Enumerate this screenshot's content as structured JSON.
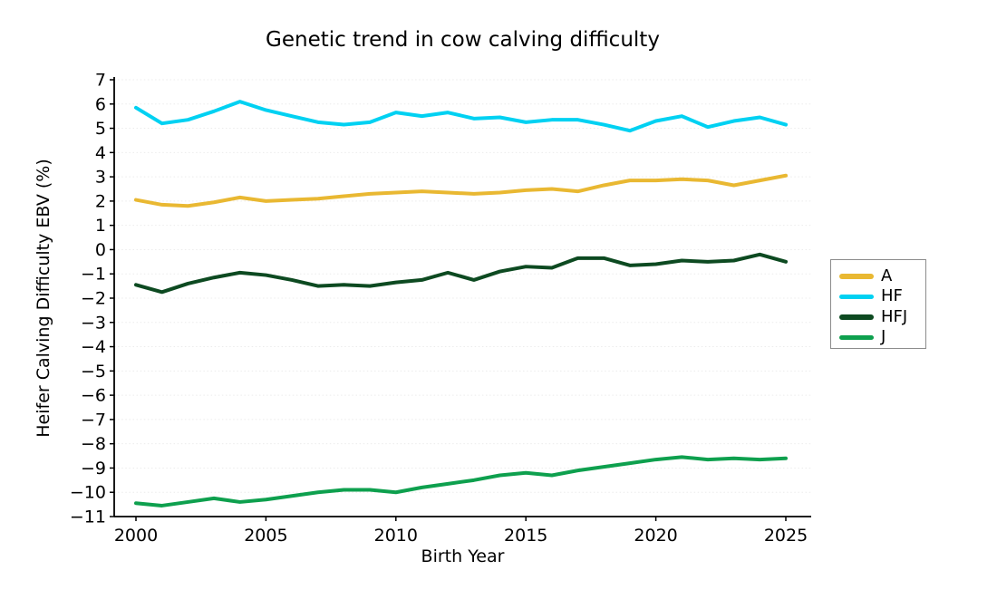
{
  "chart_data": {
    "type": "line",
    "title": "Genetic trend in cow calving difficulty",
    "xlabel": "Birth Year",
    "ylabel": "Heifer Calving Difficulty EBV (%)",
    "x": [
      2000,
      2001,
      2002,
      2003,
      2004,
      2005,
      2006,
      2007,
      2008,
      2009,
      2010,
      2011,
      2012,
      2013,
      2014,
      2015,
      2016,
      2017,
      2018,
      2019,
      2020,
      2021,
      2022,
      2023,
      2024,
      2025
    ],
    "xticks": [
      2000,
      2005,
      2010,
      2015,
      2020,
      2025
    ],
    "ylim": [
      -11,
      7
    ],
    "ytick_step": 1,
    "grid": "horizontal-dashed-light",
    "legend_position": "right-outside",
    "series": [
      {
        "name": "A",
        "color": "#E9B832",
        "values": [
          2.05,
          1.85,
          1.8,
          1.95,
          2.15,
          2.0,
          2.05,
          2.1,
          2.2,
          2.3,
          2.35,
          2.4,
          2.35,
          2.3,
          2.35,
          2.45,
          2.5,
          2.4,
          2.65,
          2.85,
          2.85,
          2.9,
          2.85,
          2.65,
          2.85,
          3.05
        ]
      },
      {
        "name": "HF",
        "color": "#00D1F2",
        "values": [
          5.85,
          5.2,
          5.35,
          5.7,
          6.1,
          5.75,
          5.5,
          5.25,
          5.15,
          5.25,
          5.65,
          5.5,
          5.65,
          5.4,
          5.45,
          5.25,
          5.35,
          5.35,
          5.15,
          4.9,
          5.3,
          5.5,
          5.05,
          5.3,
          5.45,
          5.15
        ]
      },
      {
        "name": "HFJ",
        "color": "#0D4A21",
        "values": [
          -1.45,
          -1.75,
          -1.4,
          -1.15,
          -0.95,
          -1.05,
          -1.25,
          -1.5,
          -1.45,
          -1.5,
          -1.35,
          -1.25,
          -0.95,
          -1.25,
          -0.9,
          -0.7,
          -0.75,
          -0.35,
          -0.35,
          -0.65,
          -0.6,
          -0.45,
          -0.5,
          -0.45,
          -0.2,
          -0.5
        ]
      },
      {
        "name": "J",
        "color": "#0EA04E",
        "values": [
          -10.45,
          -10.55,
          -10.4,
          -10.25,
          -10.4,
          -10.3,
          -10.15,
          -10.0,
          -9.9,
          -9.9,
          -10.0,
          -9.8,
          -9.65,
          -9.5,
          -9.3,
          -9.2,
          -9.3,
          -9.1,
          -8.95,
          -8.8,
          -8.65,
          -8.55,
          -8.65,
          -8.6,
          -8.65,
          -8.6
        ]
      }
    ]
  }
}
